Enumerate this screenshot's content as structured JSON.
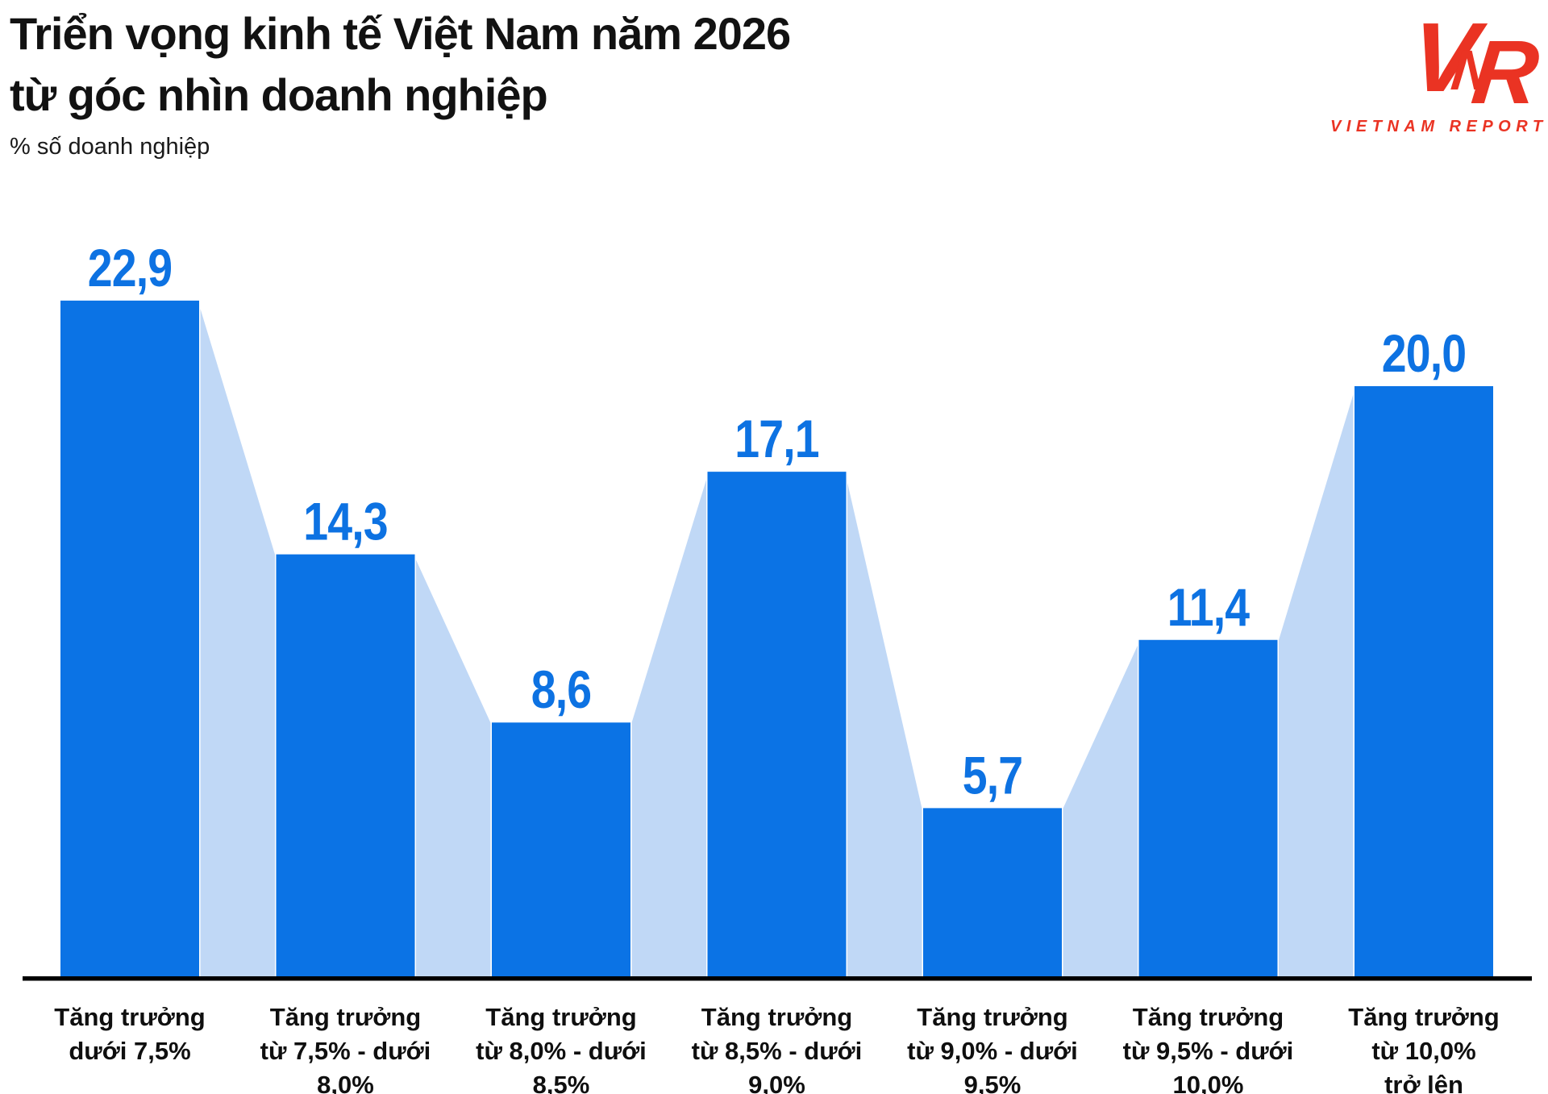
{
  "header": {
    "title_line1": "Triển vọng kinh tế Việt Nam năm 2026",
    "title_line2": "từ góc nhìn doanh nghiệp",
    "subtitle": "% số doanh nghiệp"
  },
  "logo": {
    "letters": [
      "V",
      "N",
      "R"
    ],
    "caption": "VIETNAM REPORT",
    "color": "#ea3323"
  },
  "chart_data": {
    "type": "bar",
    "title": "Triển vọng kinh tế Việt Nam năm 2026 từ góc nhìn doanh nghiệp",
    "unit_note": "% số doanh nghiệp",
    "categories": [
      [
        "Tăng trưởng",
        "dưới 7,5%"
      ],
      [
        "Tăng trưởng",
        "từ 7,5% - dưới",
        "8,0%"
      ],
      [
        "Tăng trưởng",
        "từ 8,0% - dưới",
        "8,5%"
      ],
      [
        "Tăng trưởng",
        "từ 8,5% - dưới",
        "9,0%"
      ],
      [
        "Tăng trưởng",
        "từ 9,0% - dưới",
        "9,5%"
      ],
      [
        "Tăng trưởng",
        "từ 9,5% - dưới",
        "10,0%"
      ],
      [
        "Tăng trưởng",
        "từ 10,0%",
        "trở lên"
      ]
    ],
    "values": [
      22.9,
      14.3,
      8.6,
      17.1,
      5.7,
      11.4,
      20.0
    ],
    "value_labels": [
      "22,9",
      "14,3",
      "8,6",
      "17,1",
      "5,7",
      "11,4",
      "20,0"
    ],
    "xlabel": "",
    "ylabel": "% số doanh nghiệp",
    "ylim": [
      0,
      25.5
    ],
    "grid": false,
    "legend": "none",
    "connector_areas": true,
    "colors": {
      "bar": "#0b73e5",
      "connector": "#c0d8f6",
      "connector_stroke": "#ffffff",
      "value_label": "#0d72e2",
      "category_label": "#0f0f0f",
      "axis": "#000000"
    }
  }
}
